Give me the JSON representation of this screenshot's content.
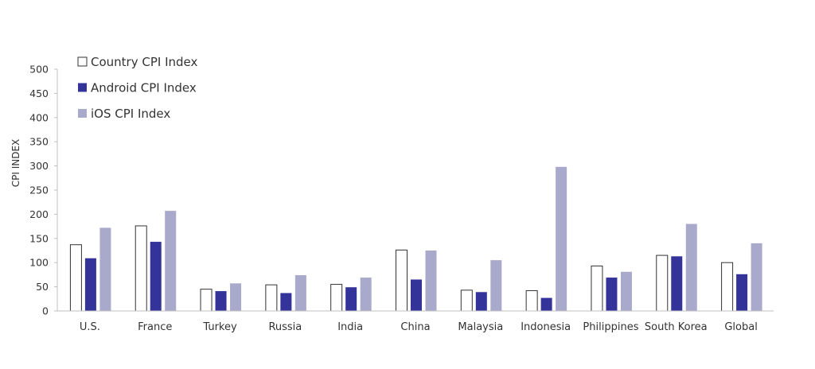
{
  "chart_data": {
    "type": "bar",
    "title": "",
    "xlabel": "",
    "ylabel": "CPI INDEX",
    "ylim": [
      0,
      500
    ],
    "yticks": [
      0,
      50,
      100,
      150,
      200,
      250,
      300,
      350,
      400,
      450,
      500
    ],
    "grid": false,
    "legend_position": "top-left",
    "categories": [
      "U.S.",
      "France",
      "Turkey",
      "Russia",
      "India",
      "China",
      "Malaysia",
      "Indonesia",
      "Philippines",
      "South Korea",
      "Global"
    ],
    "series": [
      {
        "name": "Country CPI Index",
        "fill": "#ffffff",
        "stroke": "#333333",
        "values": [
          137,
          176,
          45,
          54,
          55,
          126,
          43,
          42,
          93,
          115,
          100
        ]
      },
      {
        "name": "Android CPI Index",
        "fill": "#333399",
        "stroke": "none",
        "values": [
          109,
          143,
          41,
          37,
          49,
          65,
          39,
          27,
          69,
          113,
          76
        ]
      },
      {
        "name": "iOS CPI Index",
        "fill": "#a9a9cc",
        "stroke": "none",
        "values": [
          172,
          207,
          57,
          74,
          69,
          125,
          105,
          298,
          81,
          180,
          140
        ]
      }
    ]
  }
}
